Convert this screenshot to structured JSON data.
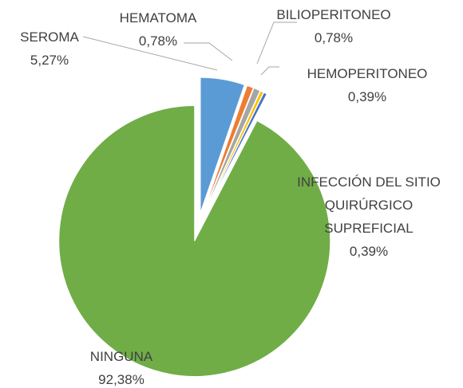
{
  "chart_data": {
    "type": "pie",
    "categories": [
      "SEROMA",
      "HEMATOMA",
      "BILIOPERITONEO",
      "HEMOPERITONEO",
      "INFECCIÓN DEL SITIO QUIRÚRGICO SUPREFICIAL",
      "NINGUNA"
    ],
    "values": [
      5.27,
      0.78,
      0.78,
      0.39,
      0.39,
      92.38
    ],
    "value_labels": [
      "5,27%",
      "0,78%",
      "0,78%",
      "0,39%",
      "0,39%",
      "92,38%"
    ],
    "colors": [
      "#5b9bd5",
      "#ed7d31",
      "#a5a5a5",
      "#ffc000",
      "#4472c4",
      "#70ad47"
    ]
  }
}
